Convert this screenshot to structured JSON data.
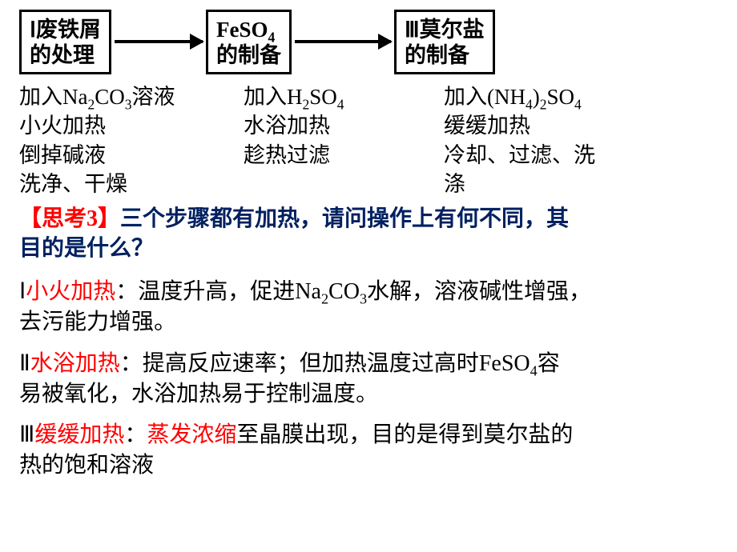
{
  "flow": {
    "box1_line1": "Ⅰ废铁屑",
    "box1_line2": "的处理",
    "box2_line1": "FeSO",
    "box2_sub": "4",
    "box2_line2": "的制备",
    "box3_line1": "Ⅲ莫尔盐",
    "box3_line2": "的制备"
  },
  "steps": {
    "col1": {
      "l1a": "加入",
      "l1b": "Na",
      "l1s1": "2",
      "l1c": "CO",
      "l1s2": "3",
      "l1d": "溶液",
      "l2": "小火加热",
      "l3": "倒掉碱液",
      "l4": "洗净、干燥"
    },
    "col2": {
      "l1a": "加入",
      "l1b": "H",
      "l1s1": "2",
      "l1c": "SO",
      "l1s2": "4",
      "l2": "水浴加热",
      "l3": "趁热过滤"
    },
    "col3": {
      "l1a": "加入",
      "l1b": "(NH",
      "l1s1": "4",
      "l1c": ")",
      "l1s2": " ",
      "l1s3": "2",
      "l1d": "SO",
      "l1s4": "4",
      "l2": "缓缓加热",
      "l3": "冷却、过滤、洗",
      "l4": "涤"
    }
  },
  "question": {
    "label": "【思考3】",
    "text1": "三个步骤都有加热，请问操作上有何不同，其",
    "text2": "目的是什么？"
  },
  "answers": {
    "a1_num": "Ⅰ",
    "a1_red": "小火加热",
    "a1_t1": "：温度升高，促进",
    "a1_chem_a": "Na",
    "a1_s1": "2",
    "a1_chem_b": "CO",
    "a1_s2": "3",
    "a1_t2": "水解，溶液碱性增强，",
    "a1_t3": "去污能力增强。",
    "a2_num": "Ⅱ",
    "a2_red": "水浴加热",
    "a2_t1": "：提高反应速率；但加热温度过高时",
    "a2_chem_a": "FeSO",
    "a2_s1": "4",
    "a2_t2": "容",
    "a2_t3": "易被氧化，水浴加热易于控制温度。",
    "a3_num": "Ⅲ",
    "a3_red1": "缓缓加热",
    "a3_sep": "：",
    "a3_red2": "蒸发浓缩",
    "a3_t1": "至晶膜出现，目的是得到莫尔盐的",
    "a3_t2": "热的饱和溶液"
  },
  "layout": {
    "arrow1_width": 110,
    "arrow2_width": 120,
    "col1_width": 280,
    "col2_width": 250,
    "col3_width": 300
  }
}
